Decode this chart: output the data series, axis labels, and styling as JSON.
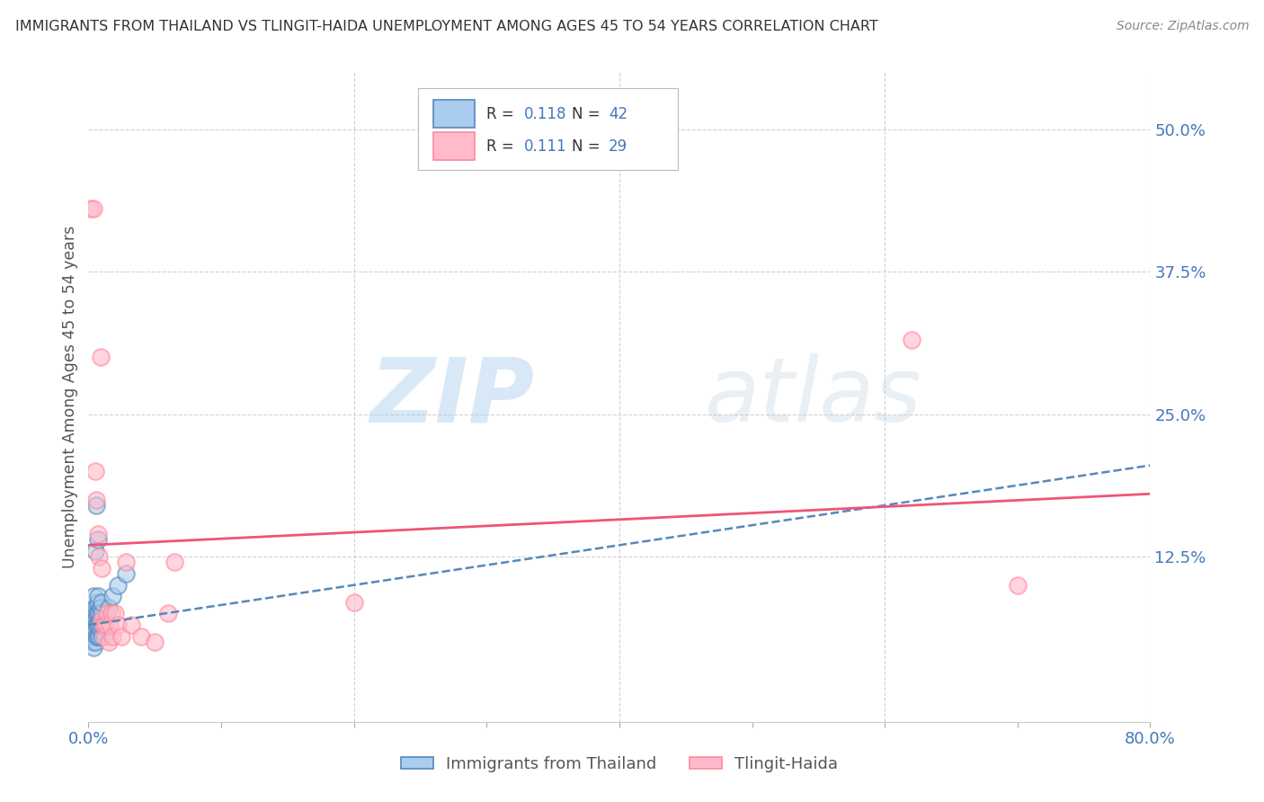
{
  "title": "IMMIGRANTS FROM THAILAND VS TLINGIT-HAIDA UNEMPLOYMENT AMONG AGES 45 TO 54 YEARS CORRELATION CHART",
  "source": "Source: ZipAtlas.com",
  "ylabel": "Unemployment Among Ages 45 to 54 years",
  "xlim": [
    0.0,
    0.8
  ],
  "ylim": [
    -0.02,
    0.55
  ],
  "yticks": [
    0.0,
    0.125,
    0.25,
    0.375,
    0.5
  ],
  "ytick_labels": [
    "",
    "12.5%",
    "25.0%",
    "37.5%",
    "50.0%"
  ],
  "xticks": [
    0.0,
    0.1,
    0.2,
    0.3,
    0.4,
    0.5,
    0.6,
    0.7,
    0.8
  ],
  "xtick_labels": [
    "0.0%",
    "",
    "",
    "",
    "",
    "",
    "",
    "",
    "80.0%"
  ],
  "blue_color": "#5588BB",
  "pink_color": "#FF8899",
  "blue_scatter": [
    [
      0.001,
      0.065
    ],
    [
      0.001,
      0.055
    ],
    [
      0.002,
      0.07
    ],
    [
      0.002,
      0.06
    ],
    [
      0.003,
      0.05
    ],
    [
      0.003,
      0.065
    ],
    [
      0.003,
      0.075
    ],
    [
      0.004,
      0.045
    ],
    [
      0.004,
      0.06
    ],
    [
      0.004,
      0.075
    ],
    [
      0.004,
      0.09
    ],
    [
      0.005,
      0.05
    ],
    [
      0.005,
      0.06
    ],
    [
      0.005,
      0.07
    ],
    [
      0.005,
      0.08
    ],
    [
      0.005,
      0.13
    ],
    [
      0.006,
      0.055
    ],
    [
      0.006,
      0.065
    ],
    [
      0.006,
      0.075
    ],
    [
      0.006,
      0.17
    ],
    [
      0.007,
      0.055
    ],
    [
      0.007,
      0.065
    ],
    [
      0.007,
      0.075
    ],
    [
      0.007,
      0.085
    ],
    [
      0.007,
      0.09
    ],
    [
      0.007,
      0.14
    ],
    [
      0.008,
      0.055
    ],
    [
      0.008,
      0.065
    ],
    [
      0.008,
      0.075
    ],
    [
      0.009,
      0.06
    ],
    [
      0.009,
      0.07
    ],
    [
      0.009,
      0.08
    ],
    [
      0.01,
      0.055
    ],
    [
      0.01,
      0.065
    ],
    [
      0.01,
      0.075
    ],
    [
      0.01,
      0.085
    ],
    [
      0.012,
      0.065
    ],
    [
      0.013,
      0.07
    ],
    [
      0.015,
      0.08
    ],
    [
      0.018,
      0.09
    ],
    [
      0.022,
      0.1
    ],
    [
      0.028,
      0.11
    ]
  ],
  "pink_scatter": [
    [
      0.002,
      0.43
    ],
    [
      0.004,
      0.43
    ],
    [
      0.005,
      0.2
    ],
    [
      0.006,
      0.175
    ],
    [
      0.007,
      0.145
    ],
    [
      0.008,
      0.125
    ],
    [
      0.009,
      0.3
    ],
    [
      0.01,
      0.115
    ],
    [
      0.01,
      0.07
    ],
    [
      0.011,
      0.065
    ],
    [
      0.012,
      0.055
    ],
    [
      0.013,
      0.065
    ],
    [
      0.014,
      0.075
    ],
    [
      0.015,
      0.05
    ],
    [
      0.016,
      0.065
    ],
    [
      0.017,
      0.075
    ],
    [
      0.018,
      0.055
    ],
    [
      0.02,
      0.075
    ],
    [
      0.022,
      0.065
    ],
    [
      0.025,
      0.055
    ],
    [
      0.028,
      0.12
    ],
    [
      0.032,
      0.065
    ],
    [
      0.04,
      0.055
    ],
    [
      0.05,
      0.05
    ],
    [
      0.06,
      0.075
    ],
    [
      0.065,
      0.12
    ],
    [
      0.2,
      0.085
    ],
    [
      0.62,
      0.315
    ],
    [
      0.7,
      0.1
    ]
  ],
  "blue_trend_x": [
    0.0,
    0.8
  ],
  "blue_trend_y": [
    0.065,
    0.205
  ],
  "pink_trend_x": [
    0.0,
    0.8
  ],
  "pink_trend_y": [
    0.135,
    0.18
  ],
  "legend_blue_r": "R = ",
  "legend_blue_r_val": "0.118",
  "legend_blue_n": "N = ",
  "legend_blue_n_val": "42",
  "legend_pink_r": "R = ",
  "legend_pink_r_val": "0.111",
  "legend_pink_n": "N = ",
  "legend_pink_n_val": "29",
  "legend_label_blue": "Immigrants from Thailand",
  "legend_label_pink": "Tlingit-Haida",
  "watermark_zip": "ZIP",
  "watermark_atlas": "atlas",
  "bg_color": "#FFFFFF",
  "grid_color": "#CCCCCC",
  "title_color": "#333333",
  "axis_label_color": "#555555",
  "tick_color": "#4477BB",
  "blue_face": "#AACCEE",
  "blue_edge": "#5588BB",
  "pink_face": "#FFBBCC",
  "pink_edge": "#FF8899"
}
